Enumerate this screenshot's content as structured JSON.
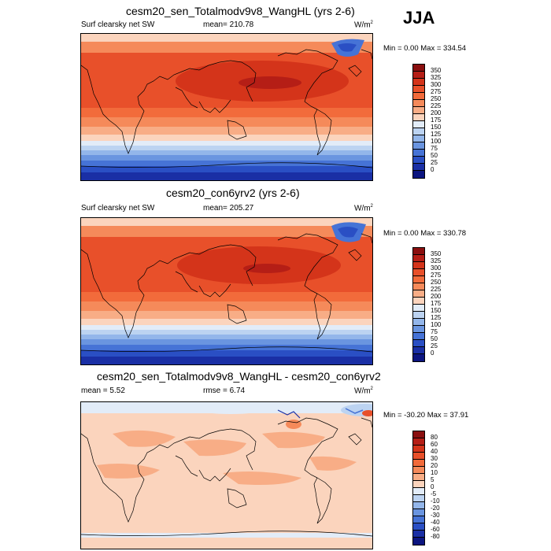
{
  "season": "JJA",
  "panels": [
    {
      "title": "cesm20_sen_Totalmodv9v8_WangHL (yrs 2-6)",
      "field": "Surf clearsky net SW",
      "stat": "mean=  210.78",
      "units_base": "W/m",
      "units_exp": "2",
      "minmax": "Min =   0.00 Max = 334.54",
      "colorbar": {
        "labels": [
          "350",
          "325",
          "300",
          "275",
          "250",
          "225",
          "200",
          "175",
          "150",
          "125",
          "100",
          "75",
          "50",
          "25",
          "0"
        ],
        "colors": [
          "#8a0f0f",
          "#b51e16",
          "#d4341a",
          "#e8502a",
          "#f26b3b",
          "#f58a5a",
          "#f8ad86",
          "#fbd4bd",
          "#e2ecf8",
          "#bcd3f1",
          "#93b6ea",
          "#6a95e0",
          "#4673d6",
          "#2a4fc4",
          "#1a2fa5",
          "#0c1580"
        ]
      }
    },
    {
      "title": "cesm20_con6yrv2 (yrs 2-6)",
      "field": "Surf clearsky net SW",
      "stat": "mean=  205.27",
      "units_base": "W/m",
      "units_exp": "2",
      "minmax": "Min =   0.00 Max = 330.78",
      "colorbar": {
        "labels": [
          "350",
          "325",
          "300",
          "275",
          "250",
          "225",
          "200",
          "175",
          "150",
          "125",
          "100",
          "75",
          "50",
          "25",
          "0"
        ],
        "colors": [
          "#8a0f0f",
          "#b51e16",
          "#d4341a",
          "#e8502a",
          "#f26b3b",
          "#f58a5a",
          "#f8ad86",
          "#fbd4bd",
          "#e2ecf8",
          "#bcd3f1",
          "#93b6ea",
          "#6a95e0",
          "#4673d6",
          "#2a4fc4",
          "#1a2fa5",
          "#0c1580"
        ]
      }
    },
    {
      "title": "cesm20_sen_Totalmodv9v8_WangHL - cesm20_con6yrv2",
      "stat_left": "mean =   5.52",
      "stat": "rmse =   6.74",
      "units_base": "W/m",
      "units_exp": "2",
      "minmax": "Min = -30.20 Max =  37.91",
      "colorbar": {
        "labels": [
          "80",
          "60",
          "40",
          "30",
          "20",
          "10",
          "5",
          "0",
          "-5",
          "-10",
          "-20",
          "-30",
          "-40",
          "-60",
          "-80"
        ],
        "colors": [
          "#8a0f0f",
          "#b51e16",
          "#d4341a",
          "#e8502a",
          "#f26b3b",
          "#f58a5a",
          "#f8ad86",
          "#fbd4bd",
          "#e2ecf8",
          "#bcd3f1",
          "#93b6ea",
          "#6a95e0",
          "#4673d6",
          "#2a4fc4",
          "#1a2fa5",
          "#0c1580"
        ]
      }
    }
  ]
}
